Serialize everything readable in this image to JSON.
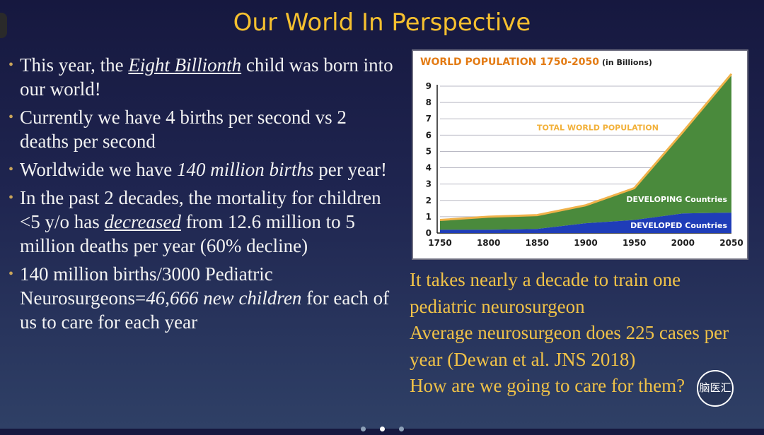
{
  "slide": {
    "title": "Our World In Perspective"
  },
  "bullets": [
    {
      "parts": [
        {
          "t": "This year, the ",
          "s": ""
        },
        {
          "t": "Eight Billionth",
          "s": "u"
        },
        {
          "t": " child was born into our world!",
          "s": ""
        }
      ]
    },
    {
      "parts": [
        {
          "t": "Currently we have 4 births per second vs 2 deaths per second",
          "s": ""
        }
      ]
    },
    {
      "parts": [
        {
          "t": "Worldwide we have ",
          "s": ""
        },
        {
          "t": "140 million births",
          "s": "i"
        },
        {
          "t": " per year!",
          "s": ""
        }
      ]
    },
    {
      "parts": [
        {
          "t": "In the past 2 decades, the mortality for children <5 y/o has ",
          "s": ""
        },
        {
          "t": "decreased",
          "s": "u"
        },
        {
          "t": " from 12.6 million to 5 million deaths per year (60% decline)",
          "s": ""
        }
      ]
    },
    {
      "parts": [
        {
          "t": "140 million  births/3000 Pediatric Neurosurgeons=",
          "s": ""
        },
        {
          "t": "46,666 new children",
          "s": "i"
        },
        {
          "t": " for each of us to care for each year",
          "s": ""
        }
      ]
    }
  ],
  "notes": [
    "It takes nearly a decade to train one pediatric neurosurgeon",
    "Average neurosurgeon does 225 cases per year (Dewan et al. JNS 2018)",
    "How are we going to care for them?"
  ],
  "badge_text": "脑医汇",
  "pager": {
    "count": 3,
    "active": 1
  },
  "chart_data": {
    "type": "area",
    "title": "WORLD POPULATION 1750-2050",
    "subtitle": "(in Billions)",
    "x": [
      1750,
      1800,
      1850,
      1900,
      1950,
      2000,
      2050
    ],
    "x_ticks": [
      1750,
      1800,
      1850,
      1900,
      1950,
      2000,
      2050
    ],
    "y_ticks": [
      0,
      1,
      2,
      3,
      4,
      5,
      6,
      7,
      8,
      9
    ],
    "xlim": [
      1750,
      2050
    ],
    "ylim": [
      0,
      9
    ],
    "grid": true,
    "series": [
      {
        "name": "DEVELOPED Countries",
        "values": [
          0.2,
          0.2,
          0.25,
          0.6,
          0.8,
          1.2,
          1.25
        ],
        "color": "#1f3db8"
      },
      {
        "name": "DEVELOPING Countries",
        "values": [
          0.6,
          0.8,
          0.85,
          1.1,
          1.95,
          5.0,
          8.5
        ],
        "color": "#4a8a3c"
      }
    ],
    "total_line": {
      "name": "TOTAL WORLD POPULATION",
      "color": "#f0b24a"
    },
    "colors": {
      "title": "#e37b14",
      "label": "#f2b13a",
      "axis": "#1d1d1d"
    }
  }
}
